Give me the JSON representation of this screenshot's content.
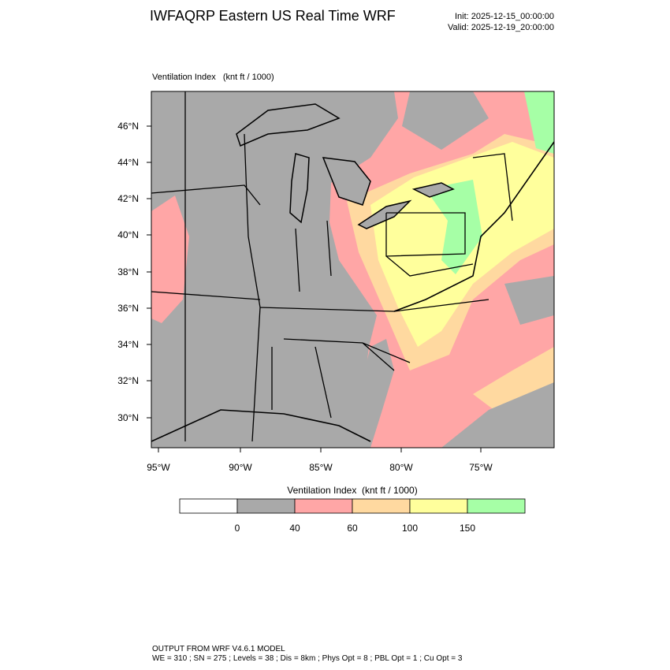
{
  "header": {
    "title": "IWFAQRP Eastern US Real Time WRF",
    "init": "Init: 2025-12-15_00:00:00",
    "valid": "Valid: 2025-12-19_20:00:00"
  },
  "map": {
    "label": "Ventilation Index   (knt ft / 1000)",
    "lat_labels": [
      "46°N",
      "44°N",
      "42°N",
      "40°N",
      "38°N",
      "36°N",
      "34°N",
      "32°N",
      "30°N"
    ],
    "lon_labels": [
      "95°W",
      "90°W",
      "85°W",
      "80°W",
      "75°W"
    ]
  },
  "colorbar": {
    "title": "Ventilation Index  (knt ft / 1000)",
    "colors": [
      "#ffffff",
      "#a9a9a9",
      "#ffa6a6",
      "#ffd9a0",
      "#ffff9c",
      "#a6ffa6"
    ],
    "levels": [
      0,
      40,
      60,
      100,
      150
    ]
  },
  "footer": {
    "line1": "OUTPUT FROM WRF V4.6.1 MODEL",
    "line2": "WE = 310 ; SN = 275 ; Levels = 38 ; Dis = 8km ; Phys Opt = 8 ; PBL Opt = 1 ; Cu Opt = 3"
  }
}
